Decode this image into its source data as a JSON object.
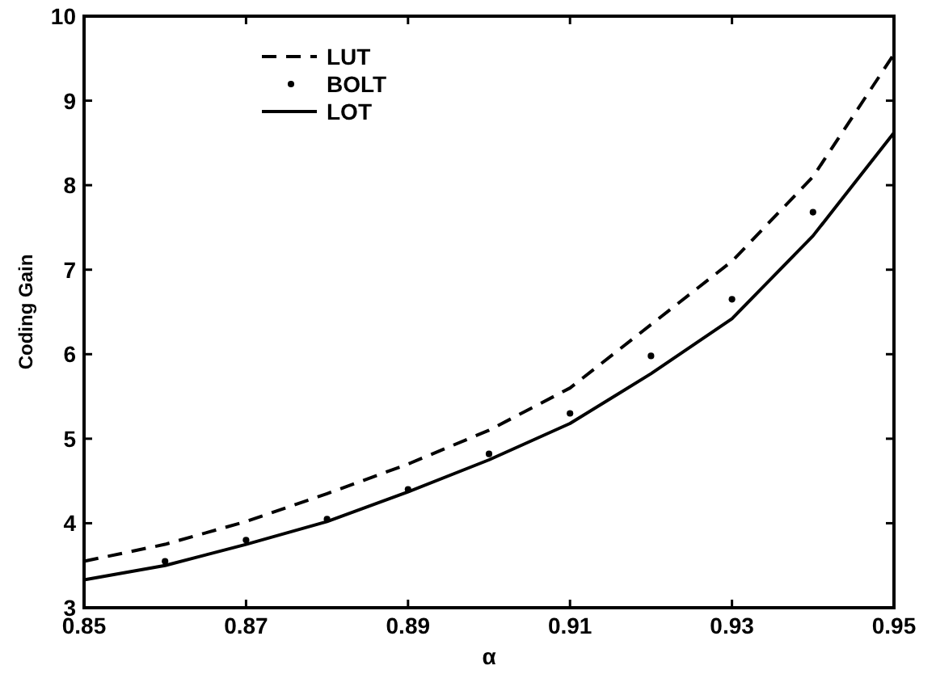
{
  "chart_data": {
    "type": "line",
    "xlabel": "α",
    "ylabel": "Coding Gain",
    "x": [
      0.85,
      0.86,
      0.87,
      0.88,
      0.89,
      0.9,
      0.91,
      0.92,
      0.93,
      0.94,
      0.95
    ],
    "xlim": [
      0.85,
      0.95
    ],
    "xticks": [
      0.85,
      0.87,
      0.89,
      0.91,
      0.93,
      0.95
    ],
    "ylim": [
      3,
      10
    ],
    "yticks": [
      3,
      4,
      5,
      6,
      7,
      8,
      9,
      10
    ],
    "grid": false,
    "legend": "top left",
    "series": [
      {
        "name": "LUT",
        "color": "#000000",
        "line_style": "dashed",
        "marker": "none",
        "values": [
          3.55,
          3.75,
          4.02,
          4.35,
          4.7,
          5.1,
          5.6,
          6.35,
          7.1,
          8.1,
          9.55
        ]
      },
      {
        "name": "BOLT",
        "type": "scatter",
        "color": "#000000",
        "marker": "circle",
        "x": [
          0.86,
          0.87,
          0.88,
          0.89,
          0.9,
          0.91,
          0.92,
          0.93,
          0.94
        ],
        "values": [
          3.55,
          3.8,
          4.05,
          4.4,
          4.82,
          5.3,
          5.98,
          6.65,
          7.68
        ]
      },
      {
        "name": "LOT",
        "color": "#000000",
        "line_style": "solid",
        "marker": "none",
        "values": [
          3.33,
          3.5,
          3.75,
          4.02,
          4.37,
          4.75,
          5.18,
          5.77,
          6.42,
          7.4,
          8.62
        ]
      }
    ]
  }
}
